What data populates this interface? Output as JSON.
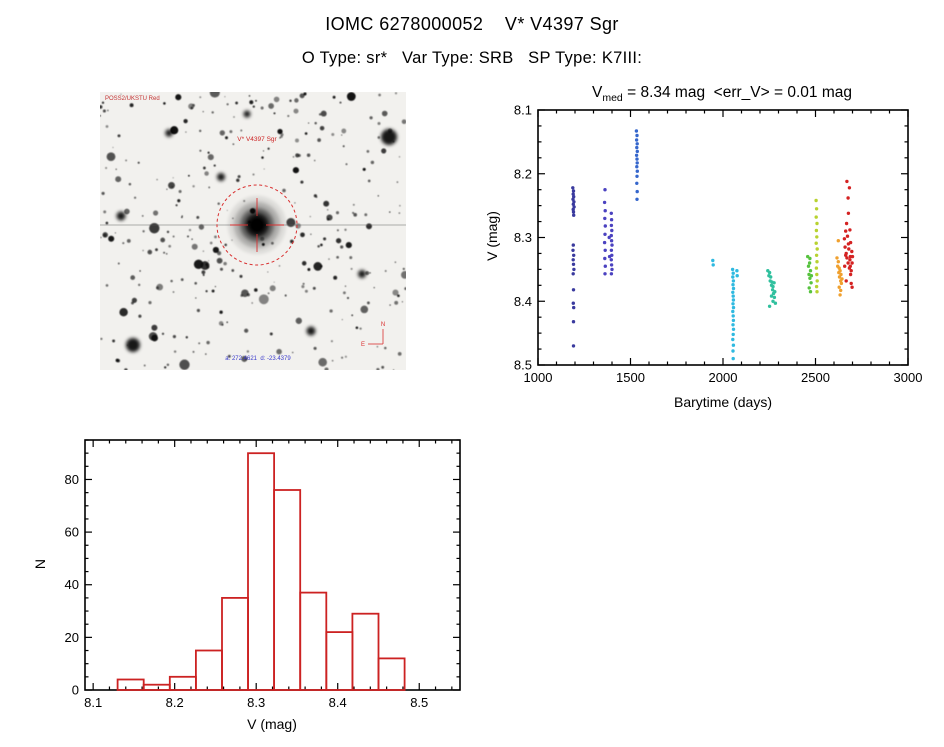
{
  "header": {
    "title": "IOMC 6278000052    V* V4397 Sgr",
    "subtitle": "O Type: sr*   Var Type: SRB   SP Type: K7III:"
  },
  "finding_chart": {
    "survey_label": "POSS2/UKSTU Red",
    "target_label": "V* V4397 Sgr",
    "coords_label": "a: 272.4621  d: -23.4379",
    "compass_north": "N",
    "compass_east": "E",
    "marker_color": "#d93030"
  },
  "chart_data": [
    {
      "type": "scatter",
      "title_var": "V",
      "title_sub": "med",
      "title_rest": " = 8.34 mag  <err_V> = 0.01 mag",
      "v_med_mag": 8.34,
      "err_v_mag": 0.01,
      "xlabel": "Barytime (days)",
      "ylabel": "V (mag)",
      "xlim": [
        1000,
        3000
      ],
      "ylim": [
        8.5,
        8.1
      ],
      "xticks": [
        1000,
        1500,
        2000,
        2500,
        3000
      ],
      "yticks": [
        8.1,
        8.2,
        8.3,
        8.4,
        8.5
      ],
      "x_minor_step": 100,
      "y_minor_step": 0.025,
      "grid": false,
      "legend": "none",
      "point_radius": 1.7,
      "series": [
        {
          "name": "epoch-1190",
          "color": "#3a3a9e",
          "points": [
            [
              1188,
              8.222
            ],
            [
              1192,
              8.227
            ],
            [
              1190,
              8.232
            ],
            [
              1193,
              8.236
            ],
            [
              1189,
              8.24
            ],
            [
              1194,
              8.244
            ],
            [
              1191,
              8.248
            ],
            [
              1195,
              8.252
            ],
            [
              1190,
              8.256
            ],
            [
              1192,
              8.26
            ],
            [
              1193,
              8.265
            ],
            [
              1191,
              8.312
            ],
            [
              1189,
              8.32
            ],
            [
              1193,
              8.328
            ],
            [
              1190,
              8.335
            ],
            [
              1192,
              8.342
            ],
            [
              1194,
              8.35
            ],
            [
              1190,
              8.357
            ],
            [
              1192,
              8.382
            ],
            [
              1191,
              8.403
            ],
            [
              1193,
              8.41
            ],
            [
              1192,
              8.432
            ],
            [
              1192,
              8.47
            ]
          ]
        },
        {
          "name": "epoch-1380",
          "color": "#4b42c0",
          "points": [
            [
              1362,
              8.225
            ],
            [
              1360,
              8.245
            ],
            [
              1363,
              8.258
            ],
            [
              1361,
              8.27
            ],
            [
              1364,
              8.282
            ],
            [
              1362,
              8.295
            ],
            [
              1360,
              8.308
            ],
            [
              1363,
              8.32
            ],
            [
              1361,
              8.333
            ],
            [
              1364,
              8.345
            ],
            [
              1362,
              8.357
            ],
            [
              1385,
              8.3
            ],
            [
              1387,
              8.33
            ],
            [
              1396,
              8.262
            ],
            [
              1398,
              8.272
            ],
            [
              1397,
              8.281
            ],
            [
              1399,
              8.289
            ],
            [
              1396,
              8.297
            ],
            [
              1398,
              8.305
            ],
            [
              1400,
              8.312
            ],
            [
              1397,
              8.32
            ],
            [
              1399,
              8.328
            ],
            [
              1396,
              8.335
            ],
            [
              1398,
              8.343
            ],
            [
              1400,
              8.35
            ],
            [
              1397,
              8.357
            ]
          ]
        },
        {
          "name": "epoch-1535",
          "color": "#3566cc",
          "points": [
            [
              1532,
              8.133
            ],
            [
              1535,
              8.14
            ],
            [
              1533,
              8.147
            ],
            [
              1536,
              8.153
            ],
            [
              1534,
              8.159
            ],
            [
              1537,
              8.165
            ],
            [
              1533,
              8.171
            ],
            [
              1535,
              8.177
            ],
            [
              1536,
              8.183
            ],
            [
              1534,
              8.189
            ],
            [
              1537,
              8.196
            ],
            [
              1535,
              8.204
            ],
            [
              1534,
              8.215
            ],
            [
              1536,
              8.228
            ],
            [
              1535,
              8.24
            ]
          ]
        },
        {
          "name": "epoch-1945",
          "color": "#2fb9e0",
          "points": [
            [
              1945,
              8.336
            ],
            [
              1947,
              8.343
            ]
          ]
        },
        {
          "name": "epoch-2055",
          "color": "#2fb9e0",
          "points": [
            [
              2052,
              8.35
            ],
            [
              2055,
              8.356
            ],
            [
              2053,
              8.362
            ],
            [
              2056,
              8.368
            ],
            [
              2054,
              8.374
            ],
            [
              2057,
              8.38
            ],
            [
              2053,
              8.386
            ],
            [
              2055,
              8.392
            ],
            [
              2056,
              8.398
            ],
            [
              2054,
              8.404
            ],
            [
              2057,
              8.41
            ],
            [
              2053,
              8.416
            ],
            [
              2055,
              8.423
            ],
            [
              2056,
              8.43
            ],
            [
              2054,
              8.437
            ],
            [
              2057,
              8.444
            ],
            [
              2055,
              8.452
            ],
            [
              2053,
              8.46
            ],
            [
              2056,
              8.469
            ],
            [
              2054,
              8.478
            ],
            [
              2055,
              8.49
            ],
            [
              2075,
              8.352
            ],
            [
              2077,
              8.36
            ]
          ]
        },
        {
          "name": "epoch-2260",
          "color": "#30c09e",
          "points": [
            [
              2242,
              8.352
            ],
            [
              2248,
              8.36
            ],
            [
              2252,
              8.355
            ],
            [
              2255,
              8.368
            ],
            [
              2258,
              8.362
            ],
            [
              2262,
              8.375
            ],
            [
              2265,
              8.37
            ],
            [
              2268,
              8.382
            ],
            [
              2270,
              8.377
            ],
            [
              2273,
              8.388
            ],
            [
              2276,
              8.371
            ],
            [
              2278,
              8.394
            ],
            [
              2280,
              8.385
            ],
            [
              2283,
              8.403
            ],
            [
              2262,
              8.392
            ],
            [
              2270,
              8.4
            ],
            [
              2252,
              8.408
            ]
          ]
        },
        {
          "name": "epoch-2470",
          "color": "#57c33f",
          "points": [
            [
              2458,
              8.33
            ],
            [
              2462,
              8.345
            ],
            [
              2465,
              8.358
            ],
            [
              2468,
              8.34
            ],
            [
              2470,
              8.364
            ],
            [
              2473,
              8.352
            ],
            [
              2476,
              8.371
            ],
            [
              2478,
              8.36
            ],
            [
              2466,
              8.379
            ],
            [
              2473,
              8.385
            ],
            [
              2470,
              8.333
            ]
          ]
        },
        {
          "name": "epoch-2505",
          "color": "#b8d230",
          "points": [
            [
              2503,
              8.242
            ],
            [
              2506,
              8.255
            ],
            [
              2504,
              8.268
            ],
            [
              2508,
              8.278
            ],
            [
              2505,
              8.289
            ],
            [
              2507,
              8.299
            ],
            [
              2504,
              8.309
            ],
            [
              2509,
              8.318
            ],
            [
              2506,
              8.328
            ],
            [
              2508,
              8.338
            ],
            [
              2505,
              8.348
            ],
            [
              2507,
              8.358
            ],
            [
              2509,
              8.368
            ],
            [
              2506,
              8.377
            ],
            [
              2508,
              8.385
            ]
          ]
        },
        {
          "name": "epoch-2630",
          "color": "#f0a02e",
          "points": [
            [
              2616,
              8.332
            ],
            [
              2620,
              8.345
            ],
            [
              2623,
              8.338
            ],
            [
              2626,
              8.355
            ],
            [
              2628,
              8.348
            ],
            [
              2630,
              8.362
            ],
            [
              2633,
              8.352
            ],
            [
              2636,
              8.368
            ],
            [
              2638,
              8.358
            ],
            [
              2640,
              8.372
            ],
            [
              2643,
              8.365
            ],
            [
              2628,
              8.378
            ],
            [
              2636,
              8.383
            ],
            [
              2623,
              8.305
            ],
            [
              2633,
              8.39
            ]
          ]
        },
        {
          "name": "epoch-2680",
          "color": "#d42222",
          "points": [
            [
              2656,
              8.302
            ],
            [
              2660,
              8.315
            ],
            [
              2663,
              8.29
            ],
            [
              2666,
              8.325
            ],
            [
              2668,
              8.278
            ],
            [
              2670,
              8.332
            ],
            [
              2673,
              8.298
            ],
            [
              2676,
              8.34
            ],
            [
              2678,
              8.262
            ],
            [
              2680,
              8.318
            ],
            [
              2683,
              8.348
            ],
            [
              2686,
              8.288
            ],
            [
              2688,
              8.33
            ],
            [
              2690,
              8.308
            ],
            [
              2693,
              8.352
            ],
            [
              2696,
              8.322
            ],
            [
              2698,
              8.34
            ],
            [
              2676,
              8.238
            ],
            [
              2683,
              8.222
            ],
            [
              2690,
              8.358
            ],
            [
              2666,
              8.368
            ],
            [
              2693,
              8.372
            ],
            [
              2658,
              8.345
            ],
            [
              2670,
              8.212
            ],
            [
              2698,
              8.378
            ],
            [
              2700,
              8.33
            ],
            [
              2686,
              8.335
            ],
            [
              2678,
              8.31
            ],
            [
              2663,
              8.328
            ],
            [
              2688,
              8.345
            ]
          ]
        }
      ]
    },
    {
      "type": "histogram",
      "xlabel": "V (mag)",
      "ylabel": "N",
      "xlim": [
        8.09,
        8.55
      ],
      "ylim": [
        0,
        95
      ],
      "xticks": [
        8.1,
        8.2,
        8.3,
        8.4,
        8.5
      ],
      "yticks": [
        0,
        20,
        40,
        60,
        80
      ],
      "x_minor_step": 0.02,
      "y_minor_step": 5,
      "grid": false,
      "bar_color": "#cc2222",
      "bin_start": 8.13,
      "bin_width": 0.032,
      "counts": [
        4,
        2,
        5,
        15,
        35,
        90,
        76,
        37,
        22,
        29,
        12
      ]
    }
  ]
}
